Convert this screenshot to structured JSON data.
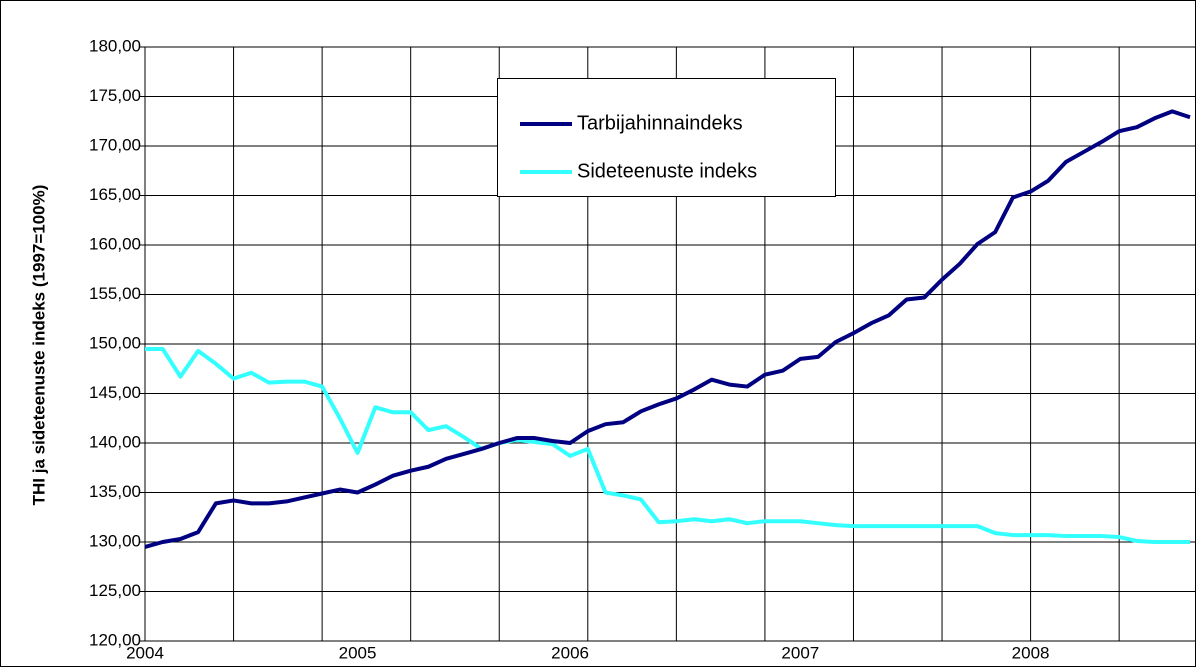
{
  "chart_data": {
    "type": "line",
    "y_label": "THI ja sideteenuste indeks (1997=100%)",
    "categories": [
      "2004",
      null,
      null,
      null,
      null,
      null,
      null,
      null,
      null,
      null,
      null,
      null,
      "2005",
      null,
      null,
      null,
      null,
      null,
      null,
      null,
      null,
      null,
      null,
      null,
      "2006",
      null,
      null,
      null,
      null,
      null,
      null,
      null,
      null,
      null,
      null,
      null,
      null,
      "2007",
      null,
      null,
      null,
      null,
      null,
      null,
      null,
      null,
      null,
      null,
      null,
      null,
      "2008",
      null,
      null,
      null,
      null,
      null,
      null,
      null,
      null,
      null
    ],
    "series": [
      {
        "name": "Tarbijahinnaindeks",
        "color": "#000080",
        "values": [
          129.5,
          130.0,
          130.3,
          131.0,
          133.9,
          134.2,
          133.9,
          133.9,
          134.1,
          134.5,
          134.9,
          135.3,
          135.0,
          135.8,
          136.7,
          137.2,
          137.6,
          138.4,
          138.9,
          139.4,
          140.0,
          140.5,
          140.5,
          140.2,
          140.0,
          141.2,
          141.9,
          142.1,
          143.2,
          143.9,
          144.5,
          145.4,
          146.4,
          145.9,
          145.7,
          146.9,
          147.3,
          148.5,
          148.7,
          150.2,
          151.1,
          152.1,
          152.9,
          154.5,
          154.7,
          156.5,
          158.1,
          160.1,
          161.3,
          164.8,
          165.4,
          166.5,
          168.4,
          169.4,
          170.4,
          171.5,
          171.9,
          172.8,
          173.5,
          172.9
        ]
      },
      {
        "name": "Sideteenuste indeks",
        "color": "#33ffff",
        "values": [
          149.5,
          149.5,
          146.7,
          149.3,
          148.0,
          146.5,
          147.1,
          146.1,
          146.2,
          146.2,
          145.7,
          142.5,
          139.0,
          143.6,
          143.1,
          143.1,
          141.3,
          141.7,
          140.6,
          139.4,
          140.0,
          140.3,
          140.1,
          139.9,
          138.7,
          139.4,
          135.0,
          134.7,
          134.3,
          132.0,
          132.1,
          132.3,
          132.1,
          132.3,
          131.9,
          132.1,
          132.1,
          132.1,
          131.9,
          131.7,
          131.6,
          131.6,
          131.6,
          131.6,
          131.6,
          131.6,
          131.6,
          131.6,
          130.9,
          130.7,
          130.7,
          130.7,
          130.6,
          130.6,
          130.6,
          130.5,
          130.1,
          130.0,
          130.0,
          130.0
        ]
      }
    ],
    "ylim": [
      120,
      180
    ],
    "yticks": [
      {
        "value": 120,
        "label": "120,00"
      },
      {
        "value": 125,
        "label": "125,00"
      },
      {
        "value": 130,
        "label": "130,00"
      },
      {
        "value": 135,
        "label": "135,00"
      },
      {
        "value": 140,
        "label": "140,00"
      },
      {
        "value": 145,
        "label": "145,00"
      },
      {
        "value": 150,
        "label": "150,00"
      },
      {
        "value": 155,
        "label": "155,00"
      },
      {
        "value": 160,
        "label": "160,00"
      },
      {
        "value": 165,
        "label": "165,00"
      },
      {
        "value": 170,
        "label": "170,00"
      },
      {
        "value": 175,
        "label": "175,00"
      },
      {
        "value": 180,
        "label": "180,00"
      }
    ],
    "grid": true,
    "legend": "top"
  }
}
